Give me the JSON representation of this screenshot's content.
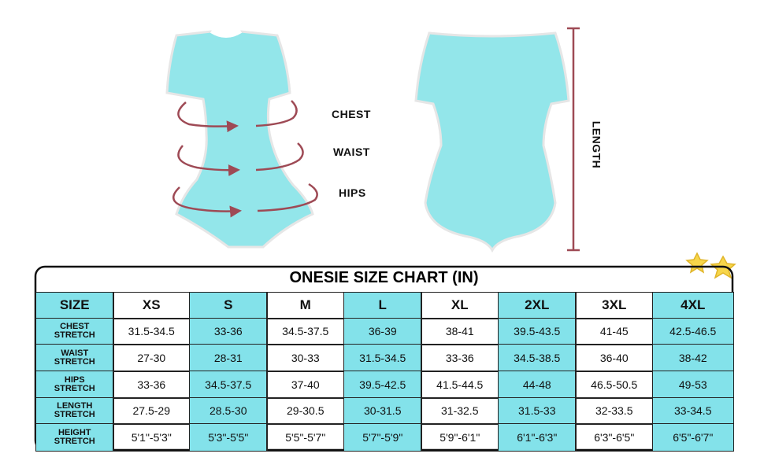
{
  "figure_labels": {
    "chest": "CHEST",
    "waist": "WAIST",
    "hips": "HIPS",
    "length": "LENGTH"
  },
  "table": {
    "title": "ONESIE SIZE CHART (IN)",
    "header": [
      "SIZE",
      "XS",
      "S",
      "M",
      "L",
      "XL",
      "2XL",
      "3XL",
      "4XL"
    ],
    "rows": [
      [
        "CHEST STRETCH",
        "31.5-34.5",
        "33-36",
        "34.5-37.5",
        "36-39",
        "38-41",
        "39.5-43.5",
        "41-45",
        "42.5-46.5"
      ],
      [
        "WAIST STRETCH",
        "27-30",
        "28-31",
        "30-33",
        "31.5-34.5",
        "33-36",
        "34.5-38.5",
        "36-40",
        "38-42"
      ],
      [
        "HIPS STRETCH",
        "33-36",
        "34.5-37.5",
        "37-40",
        "39.5-42.5",
        "41.5-44.5",
        "44-48",
        "46.5-50.5",
        "49-53"
      ],
      [
        "LENGTH STRETCH",
        "27.5-29",
        "28.5-30",
        "29-30.5",
        "30-31.5",
        "31-32.5",
        "31.5-33",
        "32-33.5",
        "33-34.5"
      ],
      [
        "HEIGHT STRETCH",
        "5'1\"-5'3\"",
        "5'3\"-5'5\"",
        "5'5\"-5'7\"",
        "5'7\"-5'9\"",
        "5'9\"-6'1\"",
        "6'1\"-6'3\"",
        "6'3\"-6'5\"",
        "6'5\"-6'7\""
      ]
    ]
  }
}
